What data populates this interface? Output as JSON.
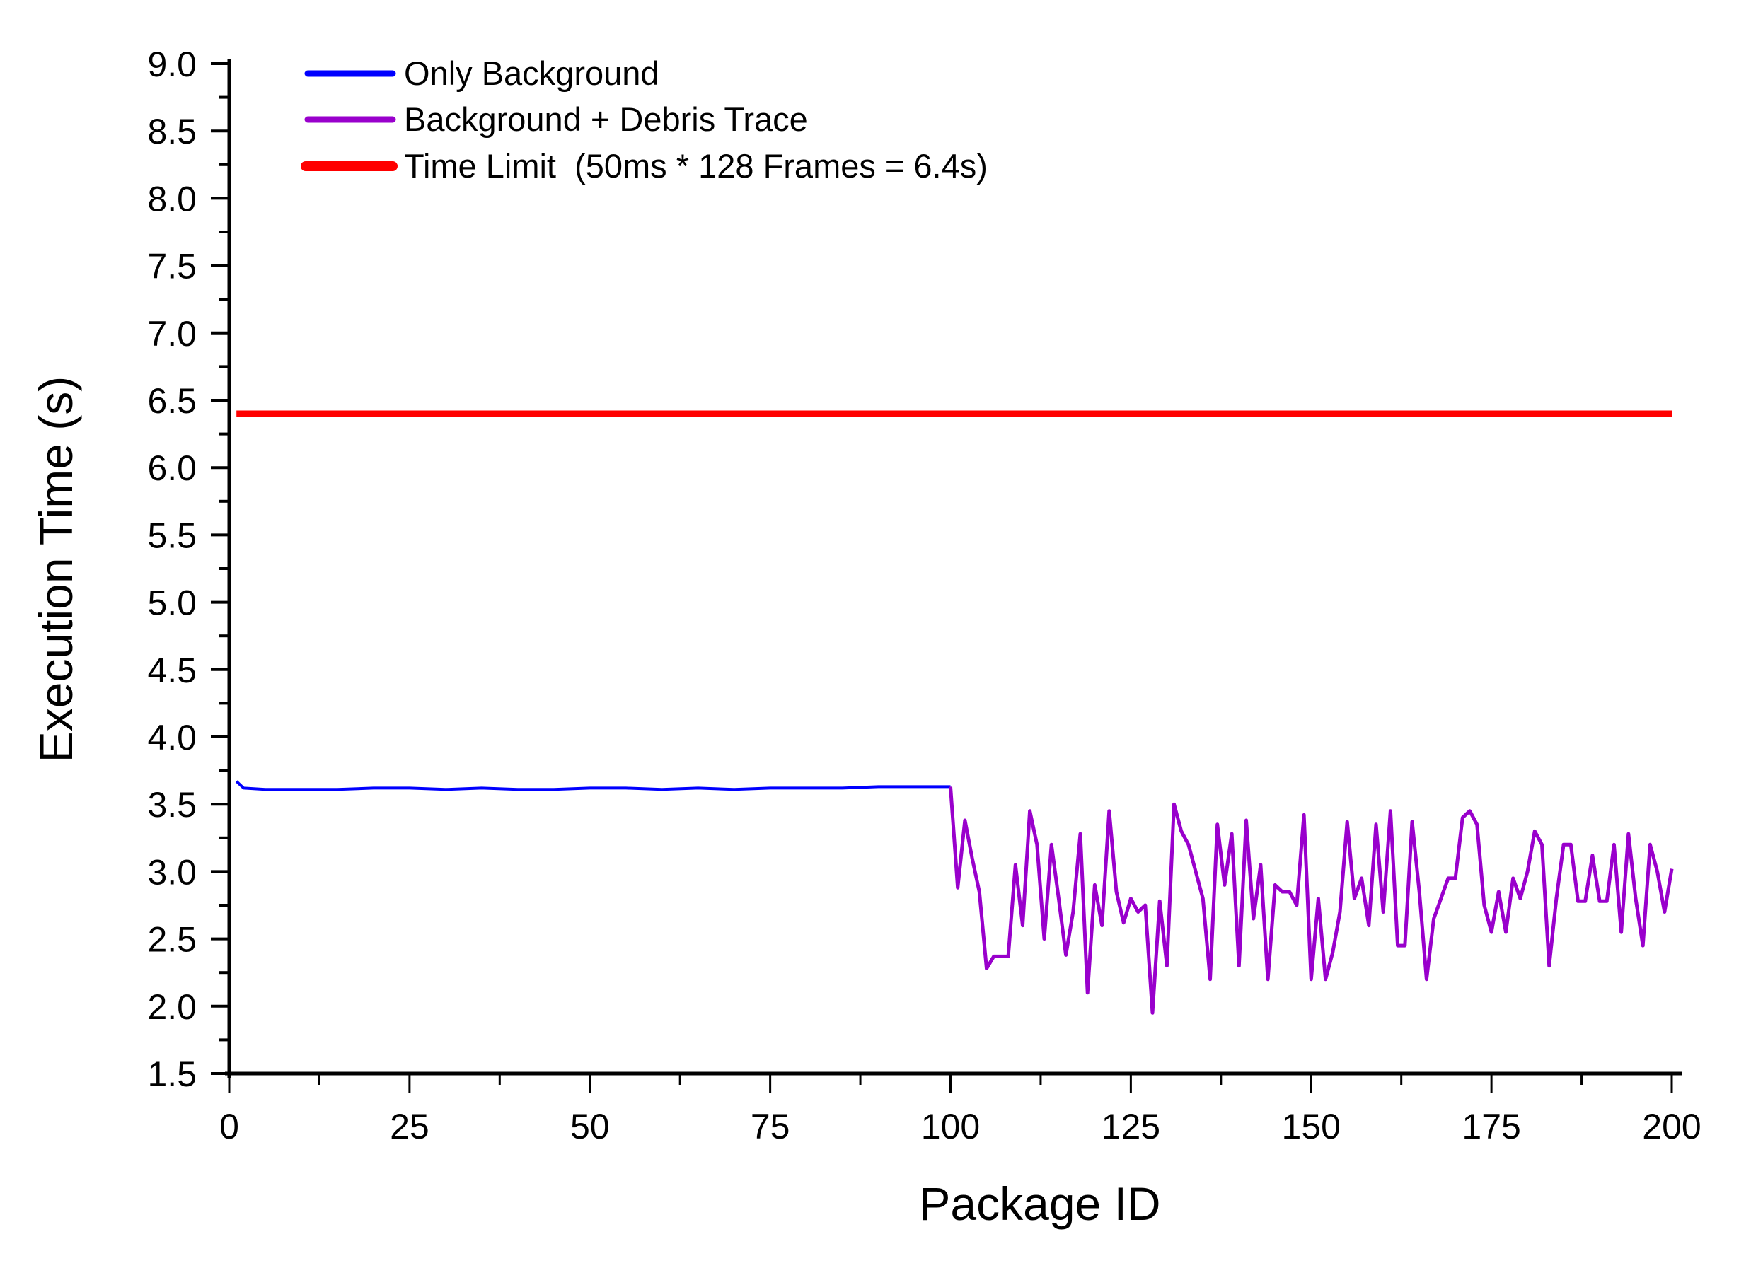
{
  "chart_data": {
    "type": "line",
    "title": "",
    "xlabel": "Package ID",
    "ylabel": "Execution Time (s)",
    "xlim": [
      0,
      200
    ],
    "ylim": [
      1.5,
      9.0
    ],
    "x_ticks": [
      0,
      25,
      50,
      75,
      100,
      125,
      150,
      175,
      200
    ],
    "x_tick_labels": [
      "0",
      "25",
      "50",
      "75",
      "100",
      "125",
      "150",
      "175",
      "200"
    ],
    "y_ticks": [
      1.5,
      2.0,
      2.5,
      3.0,
      3.5,
      4.0,
      4.5,
      5.0,
      5.5,
      6.0,
      6.5,
      7.0,
      7.5,
      8.0,
      8.5,
      9.0
    ],
    "y_tick_labels": [
      "1.5",
      "2.0",
      "2.5",
      "3.0",
      "3.5",
      "4.0",
      "4.5",
      "5.0",
      "5.5",
      "6.0",
      "6.5",
      "7.0",
      "7.5",
      "8.0",
      "8.5",
      "9.0"
    ],
    "grid": false,
    "legend_position": "upper left",
    "series": [
      {
        "name": "Only Background",
        "color": "#0000ff",
        "x": [
          1,
          2,
          5,
          10,
          15,
          20,
          25,
          30,
          35,
          40,
          45,
          50,
          55,
          60,
          65,
          70,
          75,
          80,
          85,
          90,
          95,
          100
        ],
        "values": [
          3.67,
          3.62,
          3.61,
          3.61,
          3.61,
          3.62,
          3.62,
          3.61,
          3.62,
          3.61,
          3.61,
          3.62,
          3.62,
          3.61,
          3.62,
          3.61,
          3.62,
          3.62,
          3.62,
          3.63,
          3.63,
          3.63
        ]
      },
      {
        "name": "Background + Debris Trace",
        "color": "#9900cc",
        "x": [
          100,
          101,
          102,
          103,
          104,
          105,
          106,
          107,
          108,
          109,
          110,
          111,
          112,
          113,
          114,
          115,
          116,
          117,
          118,
          119,
          120,
          121,
          122,
          123,
          124,
          125,
          126,
          127,
          128,
          129,
          130,
          131,
          132,
          133,
          134,
          135,
          136,
          137,
          138,
          139,
          140,
          141,
          142,
          143,
          144,
          145,
          146,
          147,
          148,
          149,
          150,
          151,
          152,
          153,
          154,
          155,
          156,
          157,
          158,
          159,
          160,
          161,
          162,
          163,
          164,
          165,
          166,
          167,
          168,
          169,
          170,
          171,
          172,
          173,
          174,
          175,
          176,
          177,
          178,
          179,
          180,
          181,
          182,
          183,
          184,
          185,
          186,
          187,
          188,
          189,
          190,
          191,
          192,
          193,
          194,
          195,
          196,
          197,
          198,
          199,
          200
        ],
        "values": [
          3.63,
          2.88,
          3.38,
          3.1,
          2.85,
          2.28,
          2.37,
          2.37,
          2.37,
          3.05,
          2.6,
          3.45,
          3.2,
          2.5,
          3.2,
          2.8,
          2.38,
          2.7,
          3.28,
          2.1,
          2.9,
          2.6,
          3.45,
          2.85,
          2.62,
          2.8,
          2.7,
          2.75,
          1.95,
          2.78,
          2.3,
          3.5,
          3.3,
          3.2,
          3.0,
          2.8,
          2.2,
          3.35,
          2.9,
          3.28,
          2.3,
          3.38,
          2.65,
          3.05,
          2.2,
          2.9,
          2.85,
          2.85,
          2.75,
          3.42,
          2.2,
          2.8,
          2.2,
          2.4,
          2.7,
          3.37,
          2.8,
          2.95,
          2.6,
          3.35,
          2.7,
          3.45,
          2.45,
          2.45,
          3.37,
          2.85,
          2.2,
          2.65,
          2.8,
          2.95,
          2.95,
          3.4,
          3.45,
          3.35,
          2.75,
          2.55,
          2.85,
          2.55,
          2.95,
          2.8,
          3.0,
          3.3,
          3.2,
          2.3,
          2.8,
          3.2,
          3.2,
          2.78,
          2.78,
          3.12,
          2.78,
          2.78,
          3.2,
          2.55,
          3.28,
          2.8,
          2.45,
          3.2,
          3.0,
          2.7,
          3.02
        ]
      },
      {
        "name": "Time Limit  (50ms * 128 Frames = 6.4s)",
        "color": "#ff0000",
        "x": [
          1,
          200
        ],
        "values": [
          6.4,
          6.4
        ]
      }
    ]
  },
  "legend": {
    "items": [
      {
        "label": "Only Background",
        "color": "#0000ff"
      },
      {
        "label": "Background + Debris Trace",
        "color": "#9900cc"
      },
      {
        "label": "Time Limit  (50ms * 128 Frames = 6.4s)",
        "color": "#ff0000"
      }
    ]
  },
  "axes": {
    "x_title": "Package ID",
    "y_title": "Execution Time (s)"
  }
}
